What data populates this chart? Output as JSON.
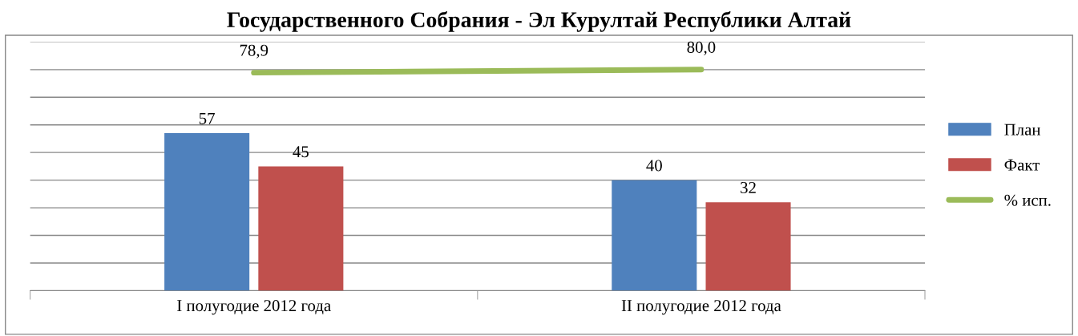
{
  "chart_data": {
    "type": "bar",
    "title": "Государственного Собрания - Эл Курултай Республики Алтай",
    "categories": [
      "I полугодие 2012 года",
      "II полугодие 2012 года"
    ],
    "series": [
      {
        "name": "План",
        "color": "#4f81bd",
        "values": [
          57,
          40
        ],
        "value_labels": [
          "57",
          "40"
        ]
      },
      {
        "name": "Факт",
        "color": "#c0504d",
        "values": [
          45,
          32
        ],
        "value_labels": [
          "45",
          "32"
        ]
      },
      {
        "name": "% исп.",
        "type": "line",
        "color": "#9bbb59",
        "values": [
          78.9,
          80.0
        ],
        "value_labels": [
          "78,9",
          "80,0"
        ]
      }
    ],
    "ylim": [
      0,
      90
    ],
    "yticks": [
      {
        "value": 0,
        "label": null
      },
      {
        "value": 10,
        "label": null
      },
      {
        "value": 20,
        "label": null
      },
      {
        "value": 30,
        "label": null
      },
      {
        "value": 40,
        "label": null
      },
      {
        "value": 50,
        "label": null
      },
      {
        "value": 60,
        "label": null
      },
      {
        "value": 70,
        "label": null
      },
      {
        "value": 80,
        "label": null
      },
      {
        "value": 90,
        "label": null
      }
    ],
    "tick_labels": "x",
    "grid": "y",
    "legend": "right",
    "marker": "none",
    "line_style": "solid"
  }
}
